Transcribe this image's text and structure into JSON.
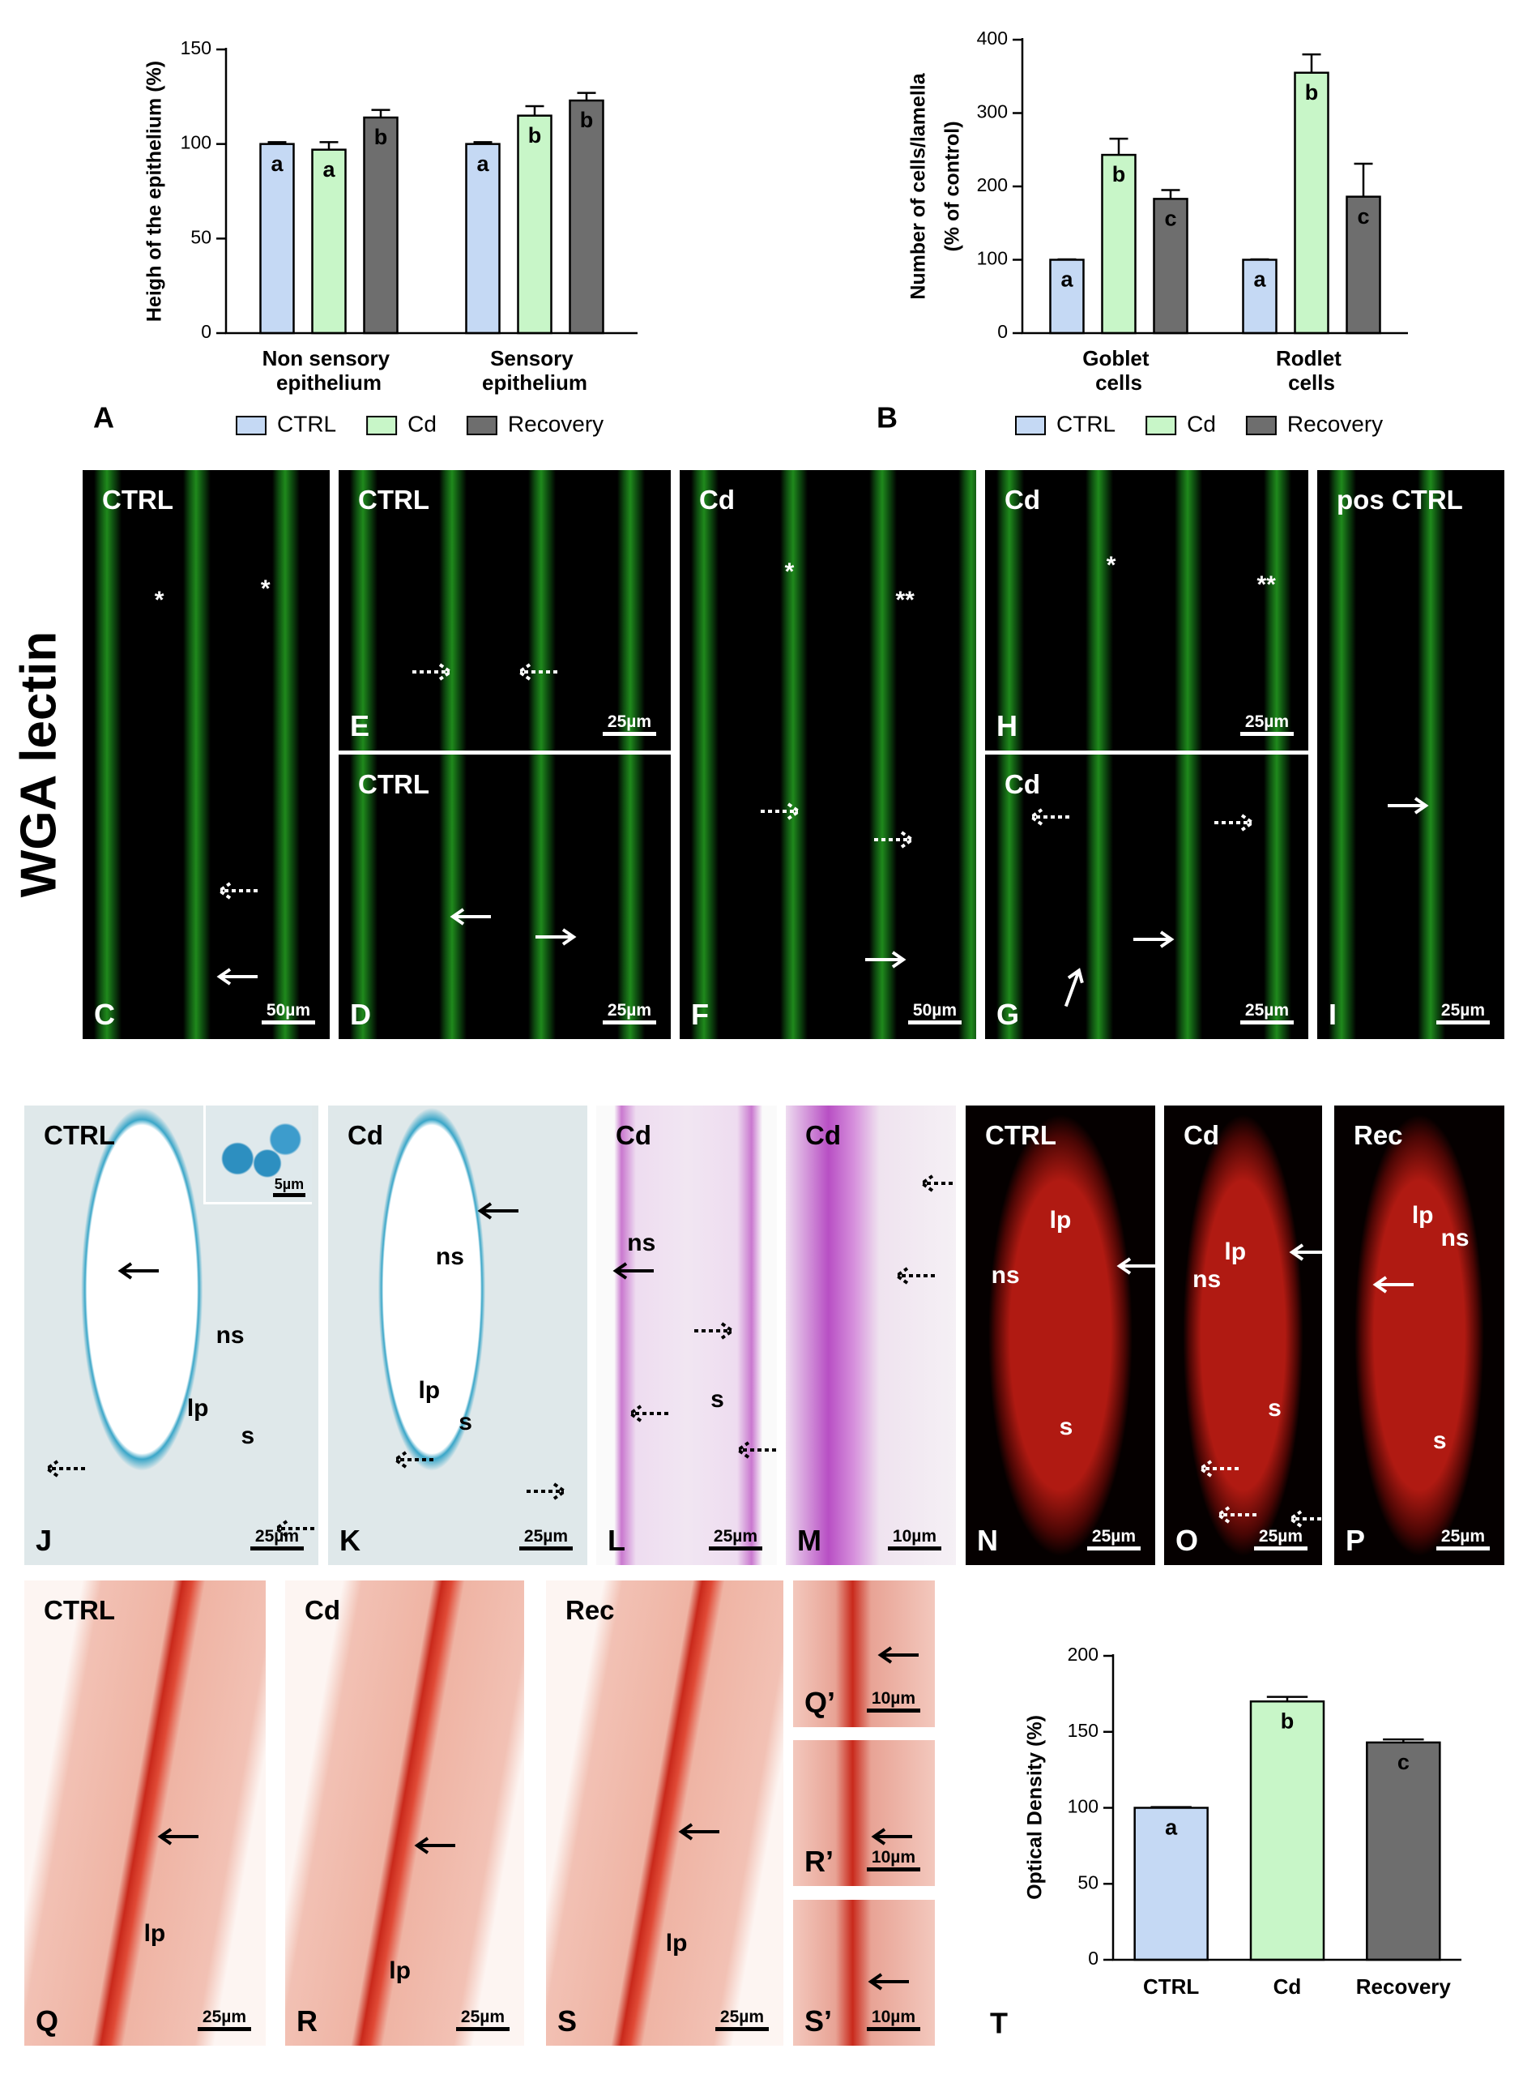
{
  "chart_data": [
    {
      "type": "bar",
      "panel": "A",
      "ylabel": "Heigh of the epithelium (%)",
      "categories": [
        "Non sensory epithelium",
        "Sensory epithelium"
      ],
      "series": [
        {
          "name": "CTRL",
          "color": "#c5d9f4",
          "values": [
            100,
            100
          ],
          "errors": [
            1,
            1
          ],
          "letters": [
            "a",
            "a"
          ]
        },
        {
          "name": "Cd",
          "color": "#c8f6c8",
          "values": [
            97,
            115
          ],
          "errors": [
            4,
            5
          ],
          "letters": [
            "a",
            "b"
          ]
        },
        {
          "name": "Recovery",
          "color": "#6e6e6e",
          "values": [
            114,
            123
          ],
          "errors": [
            4,
            4
          ],
          "letters": [
            "b",
            "b"
          ]
        }
      ],
      "ylim": [
        0,
        150
      ],
      "yticks": [
        0,
        50,
        100,
        150
      ],
      "legend": "bottom"
    },
    {
      "type": "bar",
      "panel": "B",
      "ylabel": [
        "Number of cells/lamella",
        "(% of control)"
      ],
      "categories": [
        "Goblet cells",
        "Rodlet cells"
      ],
      "series": [
        {
          "name": "CTRL",
          "color": "#c5d9f4",
          "values": [
            100,
            100
          ],
          "errors": [
            0.5,
            0.5
          ],
          "letters": [
            "a",
            "a"
          ]
        },
        {
          "name": "Cd",
          "color": "#c8f6c8",
          "values": [
            243,
            355
          ],
          "errors": [
            22,
            25
          ],
          "letters": [
            "b",
            "b"
          ]
        },
        {
          "name": "Recovery",
          "color": "#6e6e6e",
          "values": [
            183,
            186
          ],
          "errors": [
            12,
            45
          ],
          "letters": [
            "c",
            "c"
          ]
        }
      ],
      "ylim": [
        0,
        400
      ],
      "yticks": [
        0,
        100,
        200,
        300,
        400
      ],
      "legend": "bottom"
    },
    {
      "type": "bar",
      "panel": "T",
      "ylabel": "Optical Density (%)",
      "categories": [
        "CTRL",
        "Cd",
        "Recovery"
      ],
      "values": [
        100,
        170,
        143
      ],
      "errors": [
        0.5,
        3,
        2
      ],
      "colors": [
        "#c5d9f4",
        "#c8f6c8",
        "#6e6e6e"
      ],
      "letters": [
        "a",
        "b",
        "c"
      ],
      "ylim": [
        0,
        200
      ],
      "yticks": [
        0,
        50,
        100,
        150,
        200
      ]
    }
  ],
  "side_label": "WGA lectin",
  "panels": [
    {
      "letter": "C",
      "tag": "CTRL",
      "scale": "50µm",
      "notes": [
        "*",
        "*"
      ]
    },
    {
      "letter": "E",
      "tag": "CTRL",
      "scale": "25µm",
      "notes": []
    },
    {
      "letter": "D",
      "tag": "CTRL",
      "scale": "25µm",
      "notes": []
    },
    {
      "letter": "F",
      "tag": "Cd",
      "scale": "50µm",
      "notes": [
        "*",
        "**"
      ]
    },
    {
      "letter": "H",
      "tag": "Cd",
      "scale": "25µm",
      "notes": [
        "*",
        "**"
      ]
    },
    {
      "letter": "G",
      "tag": "Cd",
      "scale": "25µm",
      "notes": []
    },
    {
      "letter": "I",
      "tag": "pos CTRL",
      "scale": "25µm",
      "notes": []
    },
    {
      "letter": "J",
      "tag": "CTRL",
      "scale": "25µm",
      "inset_scale": "5µm",
      "notes": [
        "ns",
        "lp",
        "s"
      ]
    },
    {
      "letter": "K",
      "tag": "Cd",
      "scale": "25µm",
      "notes": [
        "ns",
        "lp",
        "s"
      ]
    },
    {
      "letter": "L",
      "tag": "Cd",
      "scale": "25µm",
      "notes": [
        "ns",
        "s"
      ]
    },
    {
      "letter": "M",
      "tag": "Cd",
      "scale": "10µm",
      "notes": []
    },
    {
      "letter": "N",
      "tag": "CTRL",
      "scale": "25µm",
      "notes": [
        "lp",
        "ns",
        "s"
      ]
    },
    {
      "letter": "O",
      "tag": "Cd",
      "scale": "25µm",
      "notes": [
        "lp",
        "ns",
        "s"
      ]
    },
    {
      "letter": "P",
      "tag": "Rec",
      "scale": "25µm",
      "notes": [
        "lp",
        "ns",
        "s"
      ]
    },
    {
      "letter": "Q",
      "tag": "CTRL",
      "scale": "25µm",
      "notes": [
        "lp"
      ]
    },
    {
      "letter": "R",
      "tag": "Cd",
      "scale": "25µm",
      "notes": [
        "lp"
      ]
    },
    {
      "letter": "S",
      "tag": "Rec",
      "scale": "25µm",
      "notes": [
        "lp"
      ]
    },
    {
      "letter": "Q’",
      "scale": "10µm",
      "notes": []
    },
    {
      "letter": "R’",
      "scale": "10µm",
      "notes": []
    },
    {
      "letter": "S’",
      "scale": "10µm",
      "notes": []
    }
  ]
}
